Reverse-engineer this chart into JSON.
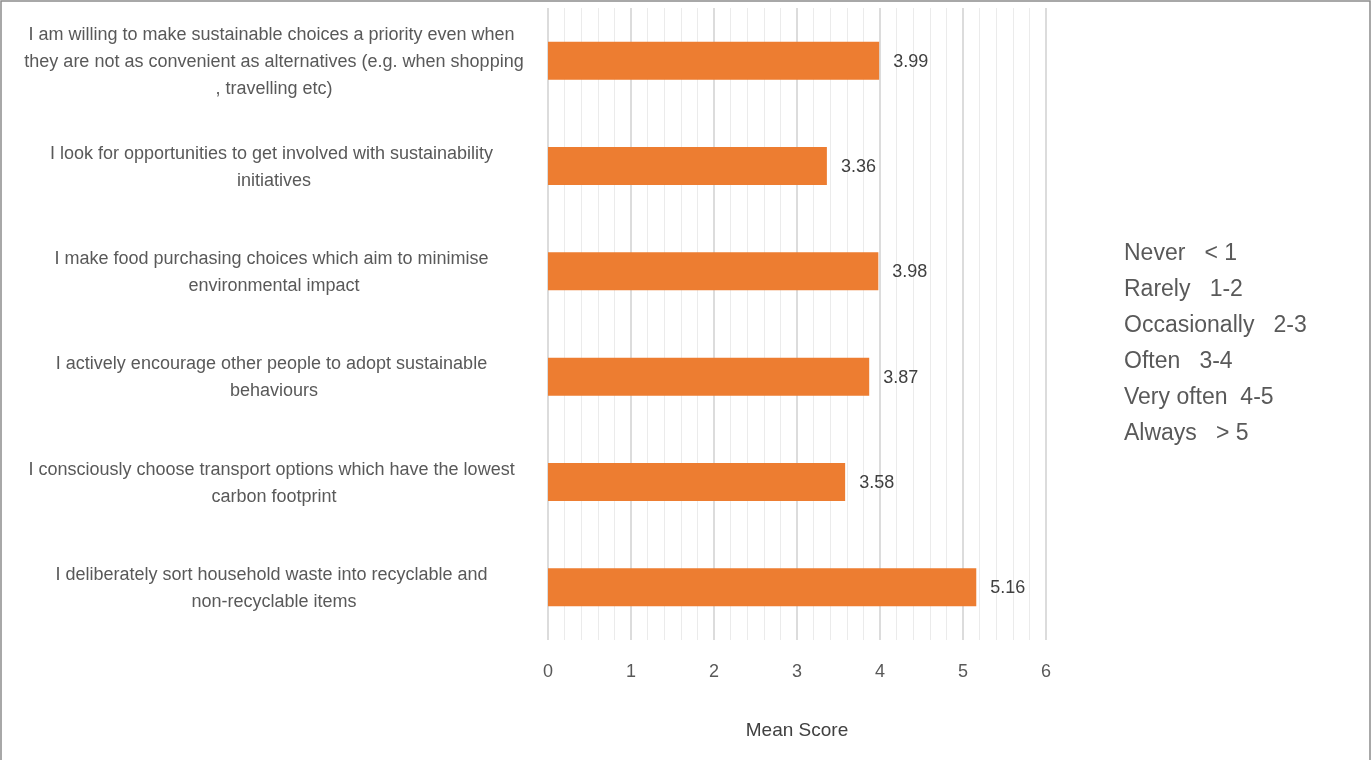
{
  "chart_data": {
    "type": "bar",
    "orientation": "horizontal",
    "xlabel": "Mean Score",
    "categories": [
      "I am willing to make sustainable choices a priority even when they are not as convenient as alternatives (e.g. when shopping, travelling etc)",
      "I look for opportunities to get involved with sustainability initiatives",
      "I make food purchasing choices which aim to minimise environmental impact",
      "I actively encourage other people to adopt sustainable behaviours",
      "I consciously choose transport options which have the lowest carbon footprint",
      "I deliberately sort household waste into recyclable and non-recyclable items"
    ],
    "values": [
      3.99,
      3.36,
      3.98,
      3.87,
      3.58,
      5.16
    ],
    "color": "#ed7d31",
    "xlim": [
      0,
      6
    ],
    "xticks": [
      0,
      1,
      2,
      3,
      4,
      5,
      6
    ],
    "grid": "x",
    "data_labels": true,
    "annotations": [
      "Never   < 1",
      "Rarely   1-2",
      "Occasionally   2-3",
      "Often   3-4",
      "Very often  4-5",
      "Always   > 5"
    ]
  }
}
